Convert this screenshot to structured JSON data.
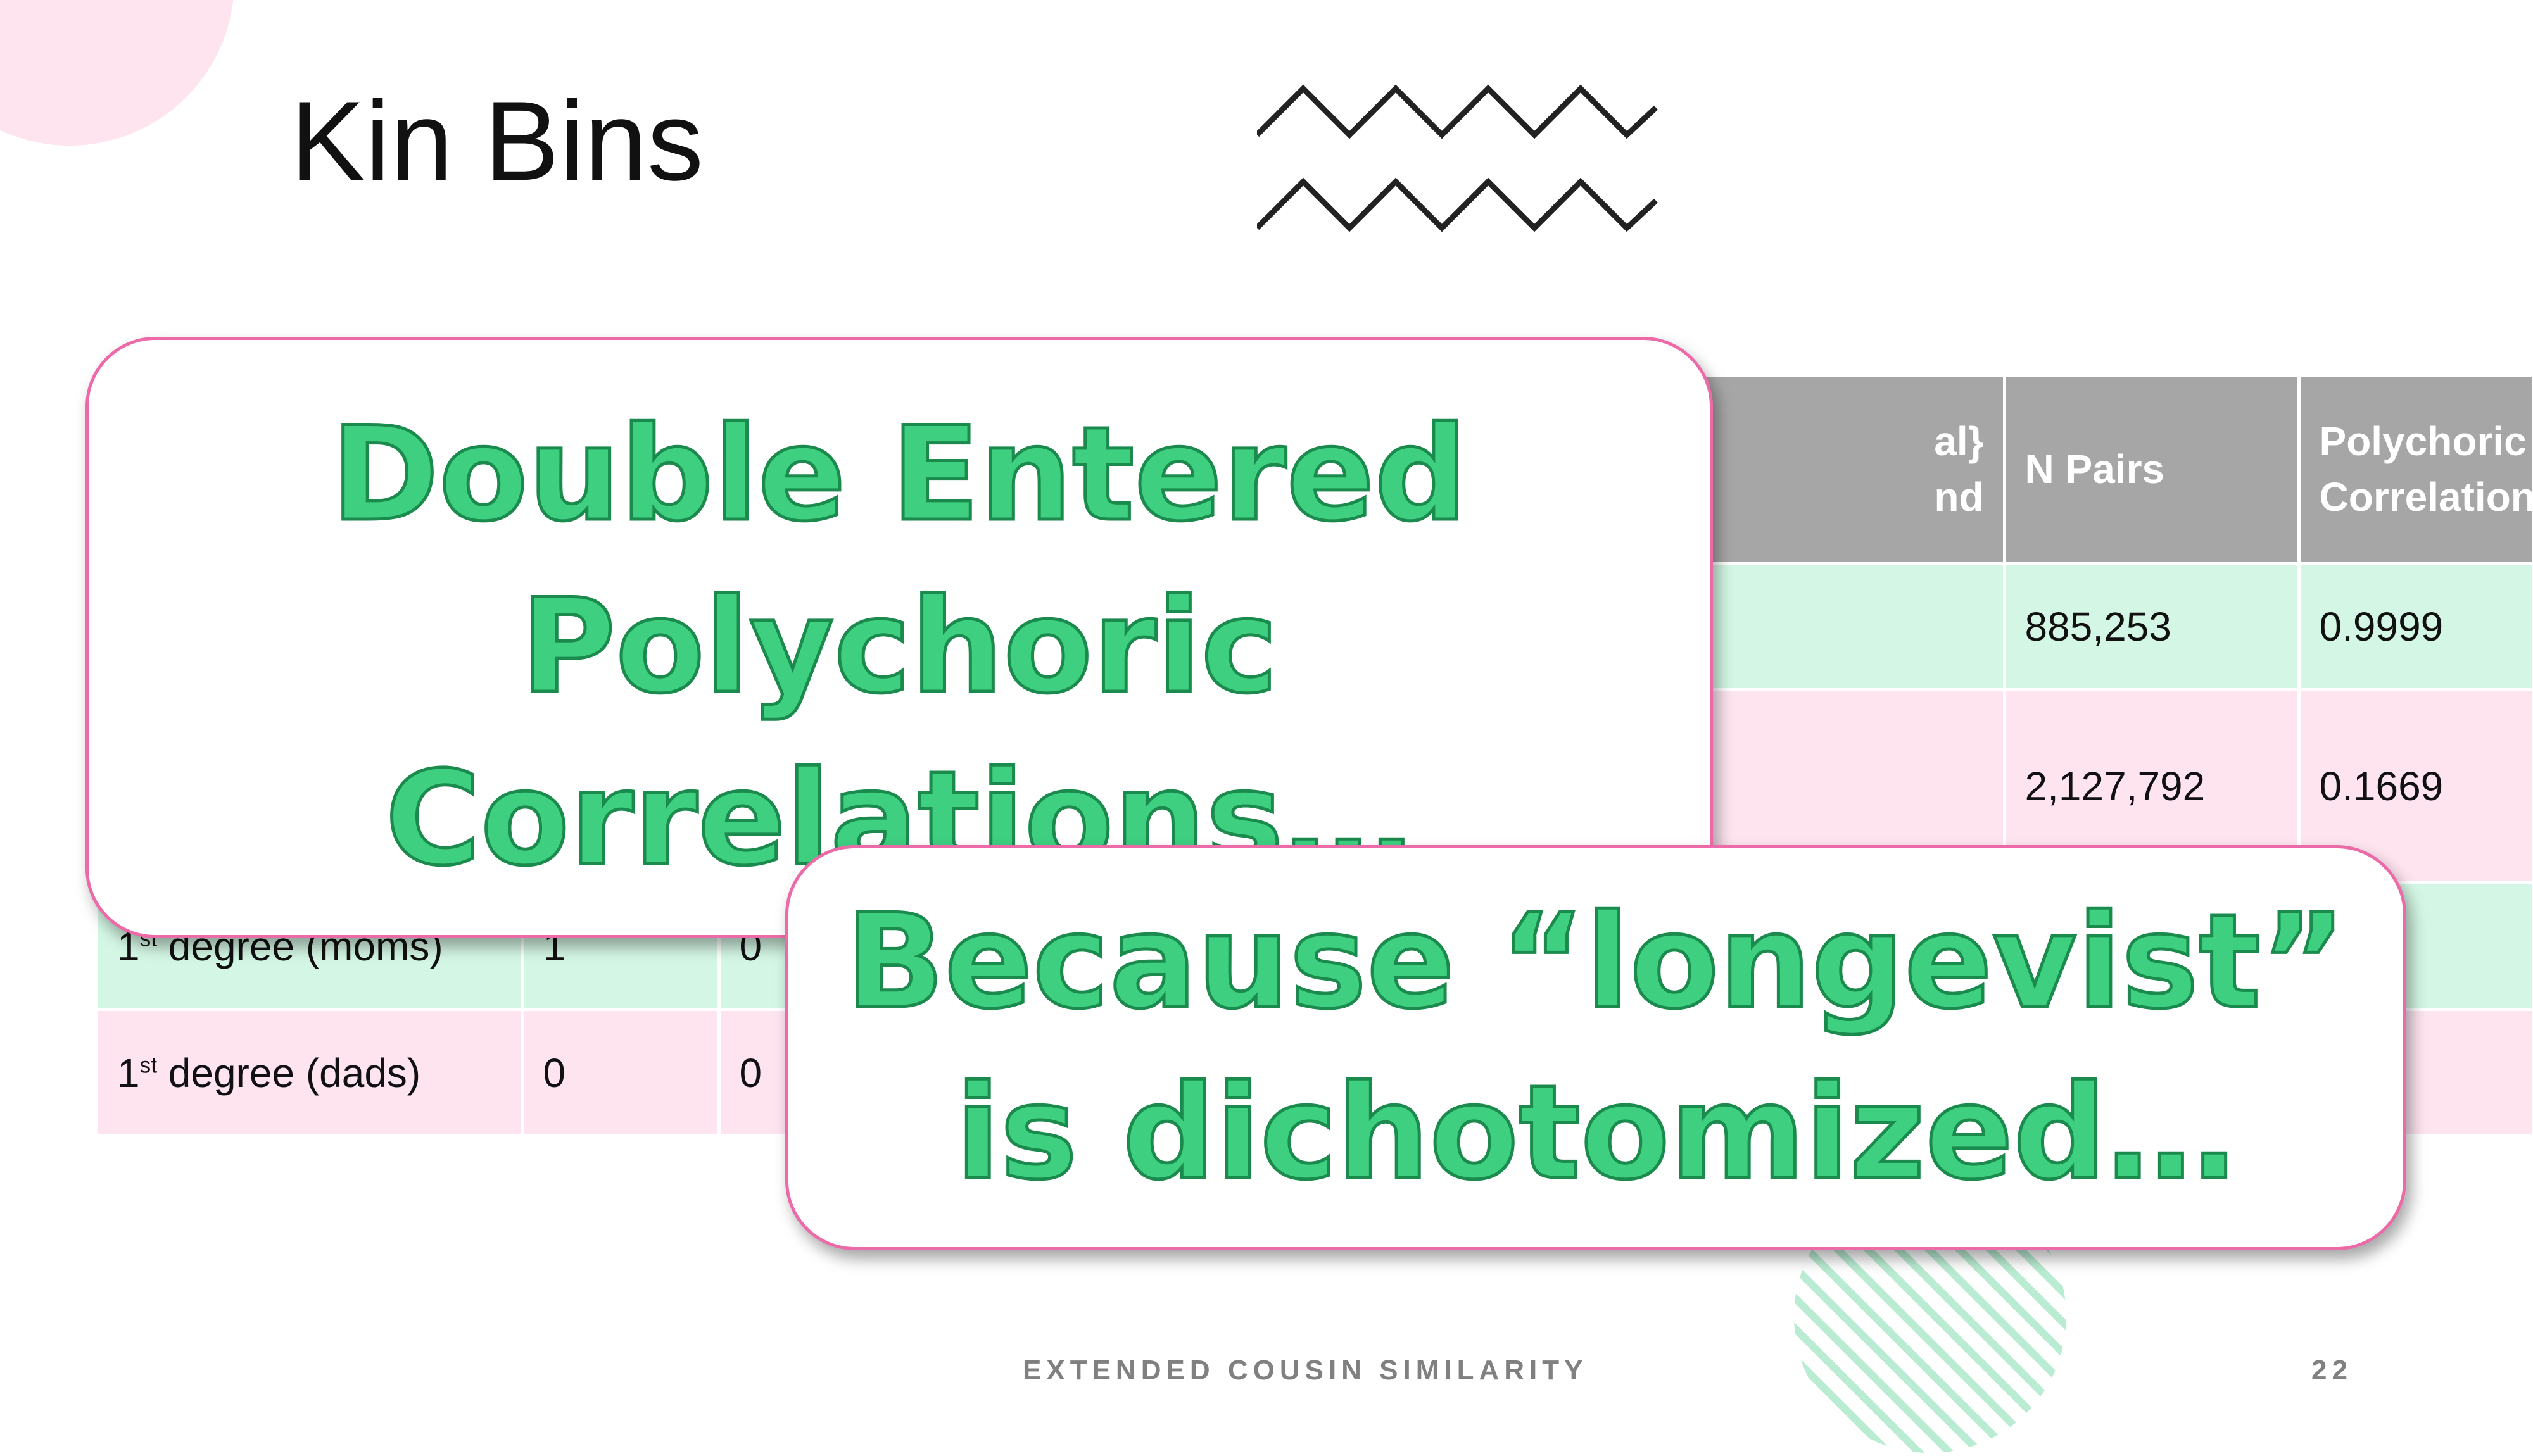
{
  "slide": {
    "title": "Kin Bins",
    "footer": "EXTENDED COUSIN SIMILARITY",
    "page_number": "22"
  },
  "table": {
    "headers": [
      "",
      "",
      "",
      "",
      "",
      "al}\nnd",
      "N Pairs",
      "Polychoric Correlations"
    ],
    "rows": [
      [
        "",
        "",
        "",
        "",
        "",
        "",
        "885,253",
        "0.9999"
      ],
      [
        "",
        "",
        "",
        "",
        "",
        "",
        "2,127,792",
        "0.1669"
      ],
      [
        "1st degree (moms)",
        "1",
        "0",
        "",
        "",
        "",
        "",
        ""
      ],
      [
        "1st degree (dads)",
        "0",
        "0",
        "",
        "",
        "",
        "",
        ""
      ]
    ],
    "row_label_prefix": "1",
    "row_label_sup": "st",
    "row_label_moms_rest": " degree (moms)",
    "row_label_dads_rest": " degree (dads)",
    "header_fragment_line1": "al}",
    "header_fragment_line2": "nd"
  },
  "callouts": {
    "first": "Double Entered Polychoric Correlations…",
    "second": "Because “longevist” is dichotomized…"
  },
  "colors": {
    "header_gray": "#a6a6a6",
    "row_green": "#d4f6e4",
    "row_pink": "#fde4ef",
    "callout_border": "#ec6aa7",
    "callout_text": "#3ecf80"
  }
}
